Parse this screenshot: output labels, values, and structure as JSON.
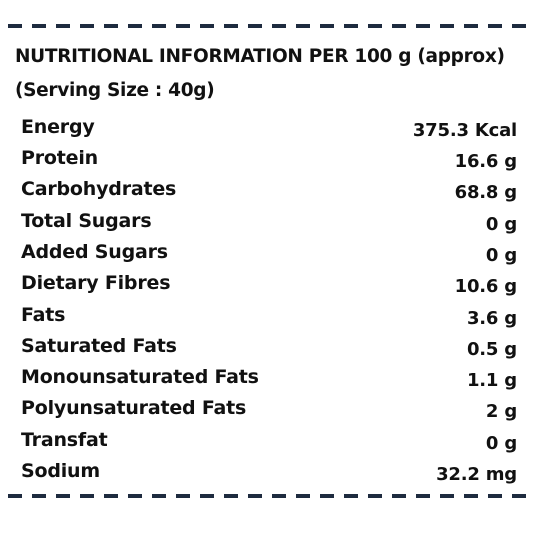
{
  "title": "NUTRITIONAL INFORMATION PER 100 g (approx)",
  "serving": "(Serving Size : 40g)",
  "nutrients": [
    {
      "label": "Energy",
      "value": "375.3 Kcal"
    },
    {
      "label": "Protein",
      "value": "16.6 g"
    },
    {
      "label": "Carbohydrates",
      "value": "68.8 g"
    },
    {
      "label": "Total Sugars",
      "value": "0 g"
    },
    {
      "label": "Added Sugars",
      "value": "0 g"
    },
    {
      "label": "Dietary Fibres",
      "value": "10.6 g"
    },
    {
      "label": "Fats",
      "value": "3.6 g"
    },
    {
      "label": "Saturated Fats",
      "value": "0.5 g"
    },
    {
      "label": "Monounsaturated Fats",
      "value": "1.1 g"
    },
    {
      "label": "Polyunsaturated Fats",
      "value": "2 g"
    },
    {
      "label": "Transfat",
      "value": "0 g"
    },
    {
      "label": "Sodium",
      "value": "32.2 mg"
    }
  ],
  "colors": {
    "border": "#1e2b3f",
    "text": "#111111",
    "background": "#ffffff"
  }
}
